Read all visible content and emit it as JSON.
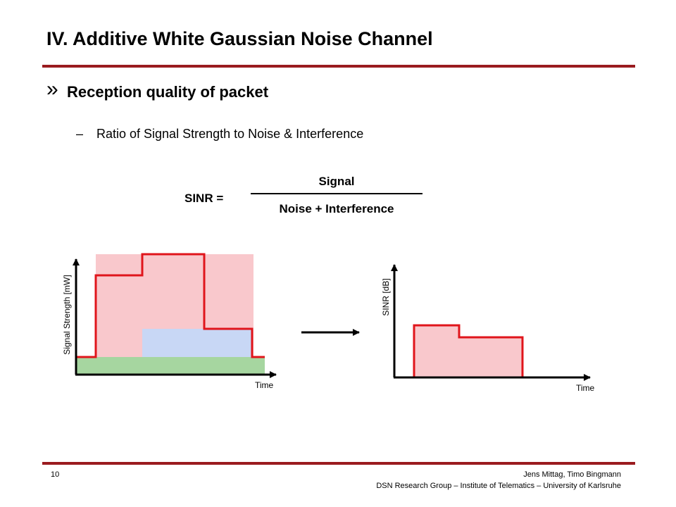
{
  "slide": {
    "title": "IV. Additive White Gaussian Noise Channel",
    "bullet_marker": "»",
    "bullet": "Reception quality of packet",
    "sub_marker": "–",
    "sub_bullet": "Ratio of Signal Strength to Noise & Interference"
  },
  "formula": {
    "lhs": "SINR =",
    "numerator": "Signal",
    "denominator": "Noise + Interference"
  },
  "left_graph": {
    "ylabel": "Signal Strength [mW]",
    "xlabel": "Time"
  },
  "right_graph": {
    "ylabel": "SINR [dB]",
    "xlabel": "Time"
  },
  "footer": {
    "page_number": "10",
    "authors": "Jens Mittag, Timo Bingmann",
    "organization": "DSN Research Group – Institute of Telematics – University of Karlsruhe"
  },
  "colors": {
    "accent_rule": "#9a1b1f",
    "signal_fill": "#f9c8cc",
    "signal_stroke": "#e0151b",
    "interference_fill": "#c8d7f5",
    "noise_fill": "#a6d6a0"
  }
}
